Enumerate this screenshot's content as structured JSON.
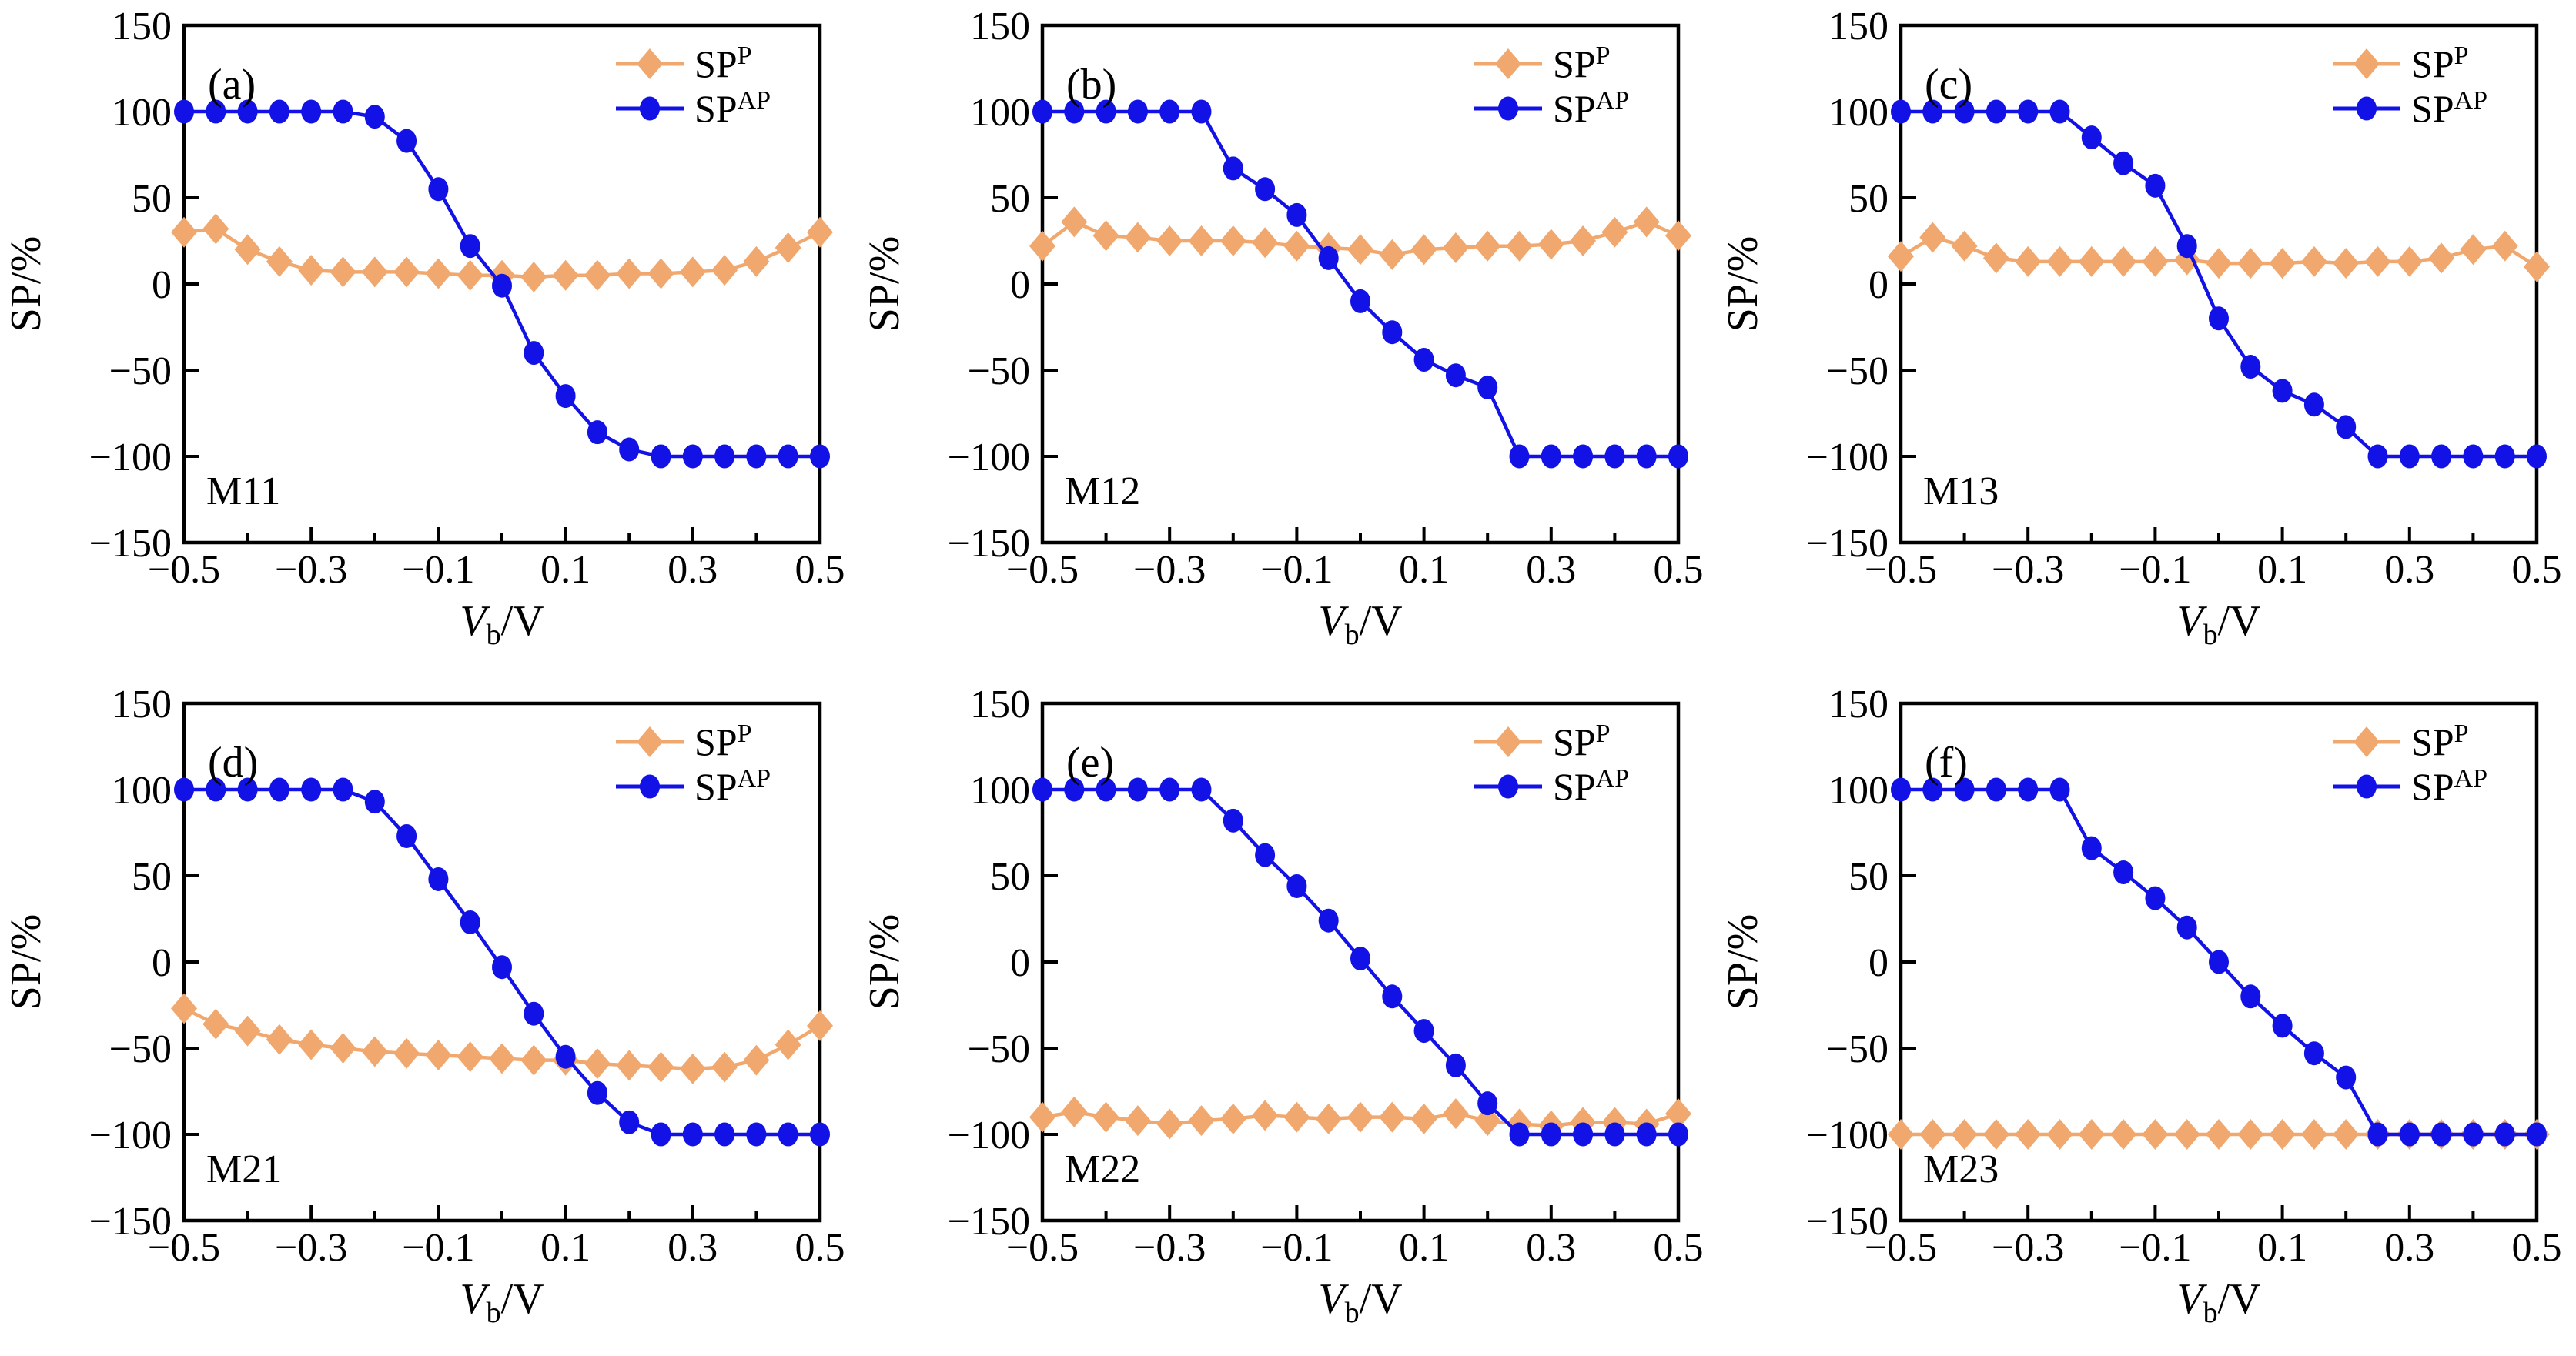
{
  "figure": {
    "ylabel": "SP/%",
    "xlabel": {
      "variable": "V",
      "subscript": "b",
      "unit": "/V"
    },
    "colors": {
      "sp_p": "#f0a86e",
      "sp_ap": "#1212e6",
      "axis": "#000000"
    },
    "legend": [
      {
        "label": "SP",
        "sup": "P",
        "marker": "diamond",
        "color": "#f0a86e"
      },
      {
        "label": "SP",
        "sup": "AP",
        "marker": "circle",
        "color": "#1212e6"
      }
    ]
  },
  "chart_data": [
    {
      "type": "line",
      "panel_label": "(a)",
      "model": "M11",
      "xlabel": "Vb/V",
      "ylabel": "SP/%",
      "xlim": [
        -0.5,
        0.5
      ],
      "ylim": [
        -150,
        150
      ],
      "xticks_major": [
        -0.5,
        -0.3,
        -0.1,
        0.1,
        0.3,
        0.5
      ],
      "xtick_labels": [
        "−0.5",
        "−0.3",
        "−0.1",
        "0.1",
        "0.3",
        "0.5"
      ],
      "xticks_minor": [
        -0.4,
        -0.2,
        0,
        0.2,
        0.4
      ],
      "yticks": [
        150,
        100,
        50,
        0,
        -50,
        -100,
        -150
      ],
      "ytick_labels": [
        "150",
        "100",
        "50",
        "0",
        "−50",
        "−100",
        "−150"
      ],
      "x": [
        -0.5,
        -0.45,
        -0.4,
        -0.35,
        -0.3,
        -0.25,
        -0.2,
        -0.15,
        -0.1,
        -0.05,
        0,
        0.05,
        0.1,
        0.15,
        0.2,
        0.25,
        0.3,
        0.35,
        0.4,
        0.45,
        0.5
      ],
      "series": [
        {
          "name": "SP_P",
          "marker": "diamond",
          "color": "#f0a86e",
          "values": [
            30,
            32,
            20,
            13,
            8,
            7,
            7,
            7,
            6,
            5,
            5,
            4,
            5,
            5,
            6,
            6,
            7,
            8,
            13,
            21,
            30
          ]
        },
        {
          "name": "SP_AP",
          "marker": "circle",
          "color": "#1212e6",
          "values": [
            100,
            100,
            100,
            100,
            100,
            100,
            97,
            83,
            55,
            22,
            -1,
            -40,
            -65,
            -86,
            -96,
            -100,
            -100,
            -100,
            -100,
            -100,
            -100
          ]
        }
      ]
    },
    {
      "type": "line",
      "panel_label": "(b)",
      "model": "M12",
      "xlabel": "Vb/V",
      "ylabel": "SP/%",
      "xlim": [
        -0.5,
        0.5
      ],
      "ylim": [
        -150,
        150
      ],
      "xticks_major": [
        -0.5,
        -0.3,
        -0.1,
        0.1,
        0.3,
        0.5
      ],
      "xtick_labels": [
        "−0.5",
        "−0.3",
        "−0.1",
        "0.1",
        "0.3",
        "0.5"
      ],
      "xticks_minor": [
        -0.4,
        -0.2,
        0,
        0.2,
        0.4
      ],
      "yticks": [
        150,
        100,
        50,
        0,
        -50,
        -100,
        -150
      ],
      "ytick_labels": [
        "150",
        "100",
        "50",
        "0",
        "−50",
        "−100",
        "−150"
      ],
      "x": [
        -0.5,
        -0.45,
        -0.4,
        -0.35,
        -0.3,
        -0.25,
        -0.2,
        -0.15,
        -0.1,
        -0.05,
        0,
        0.05,
        0.1,
        0.15,
        0.2,
        0.25,
        0.3,
        0.35,
        0.4,
        0.45,
        0.5
      ],
      "series": [
        {
          "name": "SP_P",
          "marker": "diamond",
          "color": "#f0a86e",
          "values": [
            22,
            36,
            28,
            27,
            25,
            25,
            25,
            24,
            22,
            21,
            20,
            17,
            20,
            21,
            22,
            22,
            23,
            25,
            30,
            36,
            28
          ]
        },
        {
          "name": "SP_AP",
          "marker": "circle",
          "color": "#1212e6",
          "values": [
            100,
            100,
            100,
            100,
            100,
            100,
            67,
            55,
            40,
            15,
            -10,
            -28,
            -44,
            -53,
            -60,
            -100,
            -100,
            -100,
            -100,
            -100,
            -100
          ]
        }
      ]
    },
    {
      "type": "line",
      "panel_label": "(c)",
      "model": "M13",
      "xlabel": "Vb/V",
      "ylabel": "SP/%",
      "xlim": [
        -0.5,
        0.5
      ],
      "ylim": [
        -150,
        150
      ],
      "xticks_major": [
        -0.5,
        -0.3,
        -0.1,
        0.1,
        0.3,
        0.5
      ],
      "xtick_labels": [
        "−0.5",
        "−0.3",
        "−0.1",
        "0.1",
        "0.3",
        "0.5"
      ],
      "xticks_minor": [
        -0.4,
        -0.2,
        0,
        0.2,
        0.4
      ],
      "yticks": [
        150,
        100,
        50,
        0,
        -50,
        -100,
        -150
      ],
      "ytick_labels": [
        "150",
        "100",
        "50",
        "0",
        "−50",
        "−100",
        "−150"
      ],
      "x": [
        -0.5,
        -0.45,
        -0.4,
        -0.35,
        -0.3,
        -0.25,
        -0.2,
        -0.15,
        -0.1,
        -0.05,
        0,
        0.05,
        0.1,
        0.15,
        0.2,
        0.25,
        0.3,
        0.35,
        0.4,
        0.45,
        0.5
      ],
      "series": [
        {
          "name": "SP_P",
          "marker": "diamond",
          "color": "#f0a86e",
          "values": [
            16,
            27,
            22,
            15,
            13,
            13,
            13,
            13,
            13,
            14,
            12,
            12,
            12,
            13,
            12,
            13,
            13,
            15,
            20,
            22,
            10
          ]
        },
        {
          "name": "SP_AP",
          "marker": "circle",
          "color": "#1212e6",
          "values": [
            100,
            100,
            100,
            100,
            100,
            100,
            85,
            70,
            57,
            22,
            -20,
            -48,
            -62,
            -70,
            -83,
            -100,
            -100,
            -100,
            -100,
            -100,
            -100
          ]
        }
      ]
    },
    {
      "type": "line",
      "panel_label": "(d)",
      "model": "M21",
      "xlabel": "Vb/V",
      "ylabel": "SP/%",
      "xlim": [
        -0.5,
        0.5
      ],
      "ylim": [
        -150,
        150
      ],
      "xticks_major": [
        -0.5,
        -0.3,
        -0.1,
        0.1,
        0.3,
        0.5
      ],
      "xtick_labels": [
        "−0.5",
        "−0.3",
        "−0.1",
        "0.1",
        "0.3",
        "0.5"
      ],
      "xticks_minor": [
        -0.4,
        -0.2,
        0,
        0.2,
        0.4
      ],
      "yticks": [
        150,
        100,
        50,
        0,
        -50,
        -100,
        -150
      ],
      "ytick_labels": [
        "150",
        "100",
        "50",
        "0",
        "−50",
        "−100",
        "−150"
      ],
      "x": [
        -0.5,
        -0.45,
        -0.4,
        -0.35,
        -0.3,
        -0.25,
        -0.2,
        -0.15,
        -0.1,
        -0.05,
        0,
        0.05,
        0.1,
        0.15,
        0.2,
        0.25,
        0.3,
        0.35,
        0.4,
        0.45,
        0.5
      ],
      "series": [
        {
          "name": "SP_P",
          "marker": "diamond",
          "color": "#f0a86e",
          "values": [
            -27,
            -36,
            -40,
            -45,
            -48,
            -50,
            -52,
            -53,
            -54,
            -55,
            -56,
            -57,
            -57,
            -59,
            -60,
            -61,
            -62,
            -61,
            -57,
            -48,
            -37
          ]
        },
        {
          "name": "SP_AP",
          "marker": "circle",
          "color": "#1212e6",
          "values": [
            100,
            100,
            100,
            100,
            100,
            100,
            93,
            73,
            48,
            23,
            -3,
            -30,
            -55,
            -76,
            -93,
            -100,
            -100,
            -100,
            -100,
            -100,
            -100
          ]
        }
      ]
    },
    {
      "type": "line",
      "panel_label": "(e)",
      "model": "M22",
      "xlabel": "Vb/V",
      "ylabel": "SP/%",
      "xlim": [
        -0.5,
        0.5
      ],
      "ylim": [
        -150,
        150
      ],
      "xticks_major": [
        -0.5,
        -0.3,
        -0.1,
        0.1,
        0.3,
        0.5
      ],
      "xtick_labels": [
        "−0.5",
        "−0.3",
        "−0.1",
        "0.1",
        "0.3",
        "0.5"
      ],
      "xticks_minor": [
        -0.4,
        -0.2,
        0,
        0.2,
        0.4
      ],
      "yticks": [
        150,
        100,
        50,
        0,
        -50,
        -100,
        -150
      ],
      "ytick_labels": [
        "150",
        "100",
        "50",
        "0",
        "−50",
        "−100",
        "−150"
      ],
      "x": [
        -0.5,
        -0.45,
        -0.4,
        -0.35,
        -0.3,
        -0.25,
        -0.2,
        -0.15,
        -0.1,
        -0.05,
        0,
        0.05,
        0.1,
        0.15,
        0.2,
        0.25,
        0.3,
        0.35,
        0.4,
        0.45,
        0.5
      ],
      "series": [
        {
          "name": "SP_P",
          "marker": "diamond",
          "color": "#f0a86e",
          "values": [
            -90,
            -87,
            -90,
            -92,
            -94,
            -92,
            -91,
            -89,
            -90,
            -91,
            -90,
            -90,
            -91,
            -88,
            -92,
            -94,
            -95,
            -93,
            -93,
            -94,
            -88
          ]
        },
        {
          "name": "SP_AP",
          "marker": "circle",
          "color": "#1212e6",
          "values": [
            100,
            100,
            100,
            100,
            100,
            100,
            82,
            62,
            44,
            24,
            2,
            -20,
            -40,
            -60,
            -82,
            -100,
            -100,
            -100,
            -100,
            -100,
            -100
          ]
        }
      ]
    },
    {
      "type": "line",
      "panel_label": "(f)",
      "model": "M23",
      "xlabel": "Vb/V",
      "ylabel": "SP/%",
      "xlim": [
        -0.5,
        0.5
      ],
      "ylim": [
        -150,
        150
      ],
      "xticks_major": [
        -0.5,
        -0.3,
        -0.1,
        0.1,
        0.3,
        0.5
      ],
      "xtick_labels": [
        "−0.5",
        "−0.3",
        "−0.1",
        "0.1",
        "0.3",
        "0.5"
      ],
      "xticks_minor": [
        -0.4,
        -0.2,
        0,
        0.2,
        0.4
      ],
      "yticks": [
        150,
        100,
        50,
        0,
        -50,
        -100,
        -150
      ],
      "ytick_labels": [
        "150",
        "100",
        "50",
        "0",
        "−50",
        "−100",
        "−150"
      ],
      "x": [
        -0.5,
        -0.45,
        -0.4,
        -0.35,
        -0.3,
        -0.25,
        -0.2,
        -0.15,
        -0.1,
        -0.05,
        0,
        0.05,
        0.1,
        0.15,
        0.2,
        0.25,
        0.3,
        0.35,
        0.4,
        0.45,
        0.5
      ],
      "series": [
        {
          "name": "SP_P",
          "marker": "diamond",
          "color": "#f0a86e",
          "values": [
            -100,
            -100,
            -100,
            -100,
            -100,
            -100,
            -100,
            -100,
            -100,
            -100,
            -100,
            -100,
            -100,
            -100,
            -100,
            -100,
            -100,
            -100,
            -100,
            -100,
            -100
          ]
        },
        {
          "name": "SP_AP",
          "marker": "circle",
          "color": "#1212e6",
          "values": [
            100,
            100,
            100,
            100,
            100,
            100,
            66,
            52,
            37,
            20,
            0,
            -20,
            -37,
            -53,
            -67,
            -100,
            -100,
            -100,
            -100,
            -100,
            -100
          ]
        }
      ]
    }
  ]
}
